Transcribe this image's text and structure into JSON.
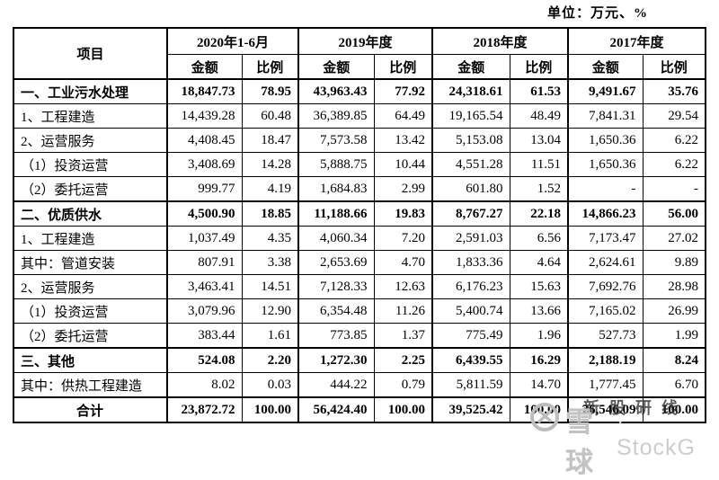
{
  "unit_label": "单位：万元、%",
  "table": {
    "item_header": "项目",
    "col_groups": [
      {
        "label": "2020年1-6月",
        "sub": [
          "金额",
          "比例"
        ]
      },
      {
        "label": "2019年度",
        "sub": [
          "金额",
          "比例"
        ]
      },
      {
        "label": "2018年度",
        "sub": [
          "金额",
          "比例"
        ]
      },
      {
        "label": "2017年度",
        "sub": [
          "金额",
          "比例"
        ]
      }
    ],
    "rows": [
      {
        "label": "一、工业污水处理",
        "bold": true,
        "center": false,
        "values": [
          "18,847.73",
          "78.95",
          "43,963.43",
          "77.92",
          "24,318.61",
          "61.53",
          "9,491.67",
          "35.76"
        ]
      },
      {
        "label": "1、工程建造",
        "bold": false,
        "center": false,
        "values": [
          "14,439.28",
          "60.48",
          "36,389.85",
          "64.49",
          "19,165.54",
          "48.49",
          "7,841.31",
          "29.54"
        ]
      },
      {
        "label": "2、运营服务",
        "bold": false,
        "center": false,
        "values": [
          "4,408.45",
          "18.47",
          "7,573.58",
          "13.42",
          "5,153.08",
          "13.04",
          "1,650.36",
          "6.22"
        ]
      },
      {
        "label": "（1）投资运营",
        "bold": false,
        "center": false,
        "values": [
          "3,408.69",
          "14.28",
          "5,888.75",
          "10.44",
          "4,551.28",
          "11.51",
          "1,650.36",
          "6.22"
        ]
      },
      {
        "label": "（2）委托运营",
        "bold": false,
        "center": false,
        "values": [
          "999.77",
          "4.19",
          "1,684.83",
          "2.99",
          "601.80",
          "1.52",
          "-",
          "-"
        ]
      },
      {
        "label": "二、优质供水",
        "bold": true,
        "center": false,
        "values": [
          "4,500.90",
          "18.85",
          "11,188.66",
          "19.83",
          "8,767.27",
          "22.18",
          "14,866.23",
          "56.00"
        ]
      },
      {
        "label": "1、工程建造",
        "bold": false,
        "center": false,
        "values": [
          "1,037.49",
          "4.35",
          "4,060.34",
          "7.20",
          "2,591.03",
          "6.56",
          "7,173.47",
          "27.02"
        ]
      },
      {
        "label": "其中：管道安装",
        "bold": false,
        "center": false,
        "values": [
          "807.91",
          "3.38",
          "2,653.69",
          "4.70",
          "1,833.36",
          "4.64",
          "2,624.61",
          "9.89"
        ]
      },
      {
        "label": "2、运营服务",
        "bold": false,
        "center": false,
        "values": [
          "3,463.41",
          "14.51",
          "7,128.33",
          "12.63",
          "6,176.23",
          "15.63",
          "7,692.76",
          "28.98"
        ]
      },
      {
        "label": "（1）投资运营",
        "bold": false,
        "center": false,
        "values": [
          "3,079.96",
          "12.90",
          "6,354.48",
          "11.26",
          "5,400.74",
          "13.66",
          "7,165.02",
          "26.99"
        ]
      },
      {
        "label": "（2）委托运营",
        "bold": false,
        "center": false,
        "values": [
          "383.44",
          "1.61",
          "773.85",
          "1.37",
          "775.49",
          "1.96",
          "527.73",
          "1.99"
        ]
      },
      {
        "label": "三、其他",
        "bold": true,
        "center": false,
        "values": [
          "524.08",
          "2.20",
          "1,272.30",
          "2.25",
          "6,439.55",
          "16.29",
          "2,188.19",
          "8.24"
        ]
      },
      {
        "label": "其中：供热工程建造",
        "bold": false,
        "center": false,
        "values": [
          "8.02",
          "0.03",
          "444.22",
          "0.79",
          "5,811.59",
          "14.70",
          "1,777.45",
          "6.70"
        ]
      },
      {
        "label": "合计",
        "bold": true,
        "center": true,
        "values": [
          "23,872.72",
          "100.00",
          "56,424.40",
          "100.00",
          "39,525.42",
          "100.00",
          "26,546.09",
          "100.00"
        ]
      }
    ]
  },
  "watermark": {
    "logo": "xueqiu-camera-logo",
    "brand": "雪球",
    "latin": "· StockG",
    "overlay_text": "新股研线"
  }
}
